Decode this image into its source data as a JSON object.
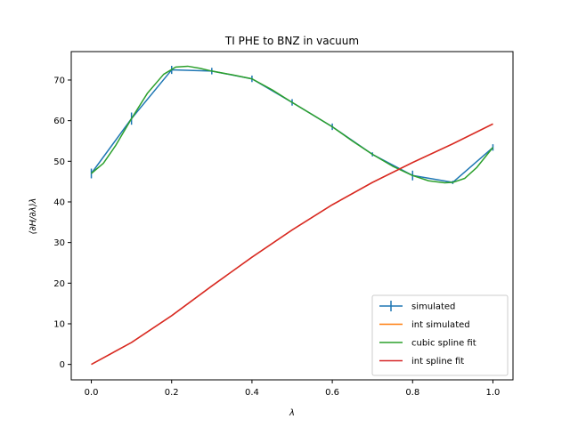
{
  "chart_data": {
    "type": "line",
    "title": "TI PHE to BNZ in vacuum",
    "xlabel": "λ",
    "ylabel": "⟨∂H/∂λ⟩λ",
    "xlim": [
      -0.05,
      1.05
    ],
    "ylim": [
      -3.8,
      77
    ],
    "xticks": [
      "0.0",
      "0.2",
      "0.4",
      "0.6",
      "0.8",
      "1.0"
    ],
    "yticks": [
      "0",
      "10",
      "20",
      "30",
      "40",
      "50",
      "60",
      "70"
    ],
    "grid": false,
    "legend_position": "lower-right",
    "series": [
      {
        "name": "simulated",
        "color": "#1f77b4",
        "style": "errorbar",
        "x": [
          0.0,
          0.1,
          0.2,
          0.3,
          0.4,
          0.5,
          0.6,
          0.7,
          0.8,
          0.9,
          1.0
        ],
        "y": [
          47.0,
          60.5,
          72.5,
          72.2,
          70.3,
          64.5,
          58.5,
          51.7,
          46.5,
          44.8,
          53.4
        ],
        "err": [
          1.2,
          1.5,
          1.0,
          0.8,
          0.8,
          0.8,
          0.8,
          0.5,
          1.2,
          0.4,
          0.8
        ]
      },
      {
        "name": "int simulated",
        "color": "#ff7f0e",
        "x": [
          0.0,
          0.1,
          0.2,
          0.3,
          0.4,
          0.5,
          0.6,
          0.7,
          0.8,
          0.9,
          1.0
        ],
        "y": [
          0.0,
          5.4,
          12.0,
          19.3,
          26.4,
          33.1,
          39.3,
          44.8,
          49.7,
          54.3,
          59.2
        ]
      },
      {
        "name": "cubic spline fit",
        "color": "#2ca02c",
        "x": [
          0.0,
          0.03,
          0.06,
          0.1,
          0.14,
          0.18,
          0.21,
          0.24,
          0.27,
          0.3,
          0.35,
          0.4,
          0.45,
          0.5,
          0.55,
          0.6,
          0.65,
          0.7,
          0.75,
          0.8,
          0.84,
          0.88,
          0.9,
          0.93,
          0.96,
          1.0
        ],
        "y": [
          47.0,
          49.5,
          53.8,
          60.5,
          66.8,
          71.4,
          73.2,
          73.4,
          72.9,
          72.2,
          71.3,
          70.3,
          67.6,
          64.5,
          61.5,
          58.5,
          55.0,
          51.7,
          48.8,
          46.5,
          45.2,
          44.7,
          44.8,
          45.8,
          48.5,
          53.4
        ]
      },
      {
        "name": "int spline fit",
        "color": "#d62728",
        "x": [
          0.0,
          0.1,
          0.2,
          0.3,
          0.4,
          0.5,
          0.6,
          0.7,
          0.8,
          0.9,
          1.0
        ],
        "y": [
          0.0,
          5.4,
          12.0,
          19.3,
          26.4,
          33.1,
          39.3,
          44.8,
          49.7,
          54.3,
          59.2
        ]
      }
    ]
  }
}
